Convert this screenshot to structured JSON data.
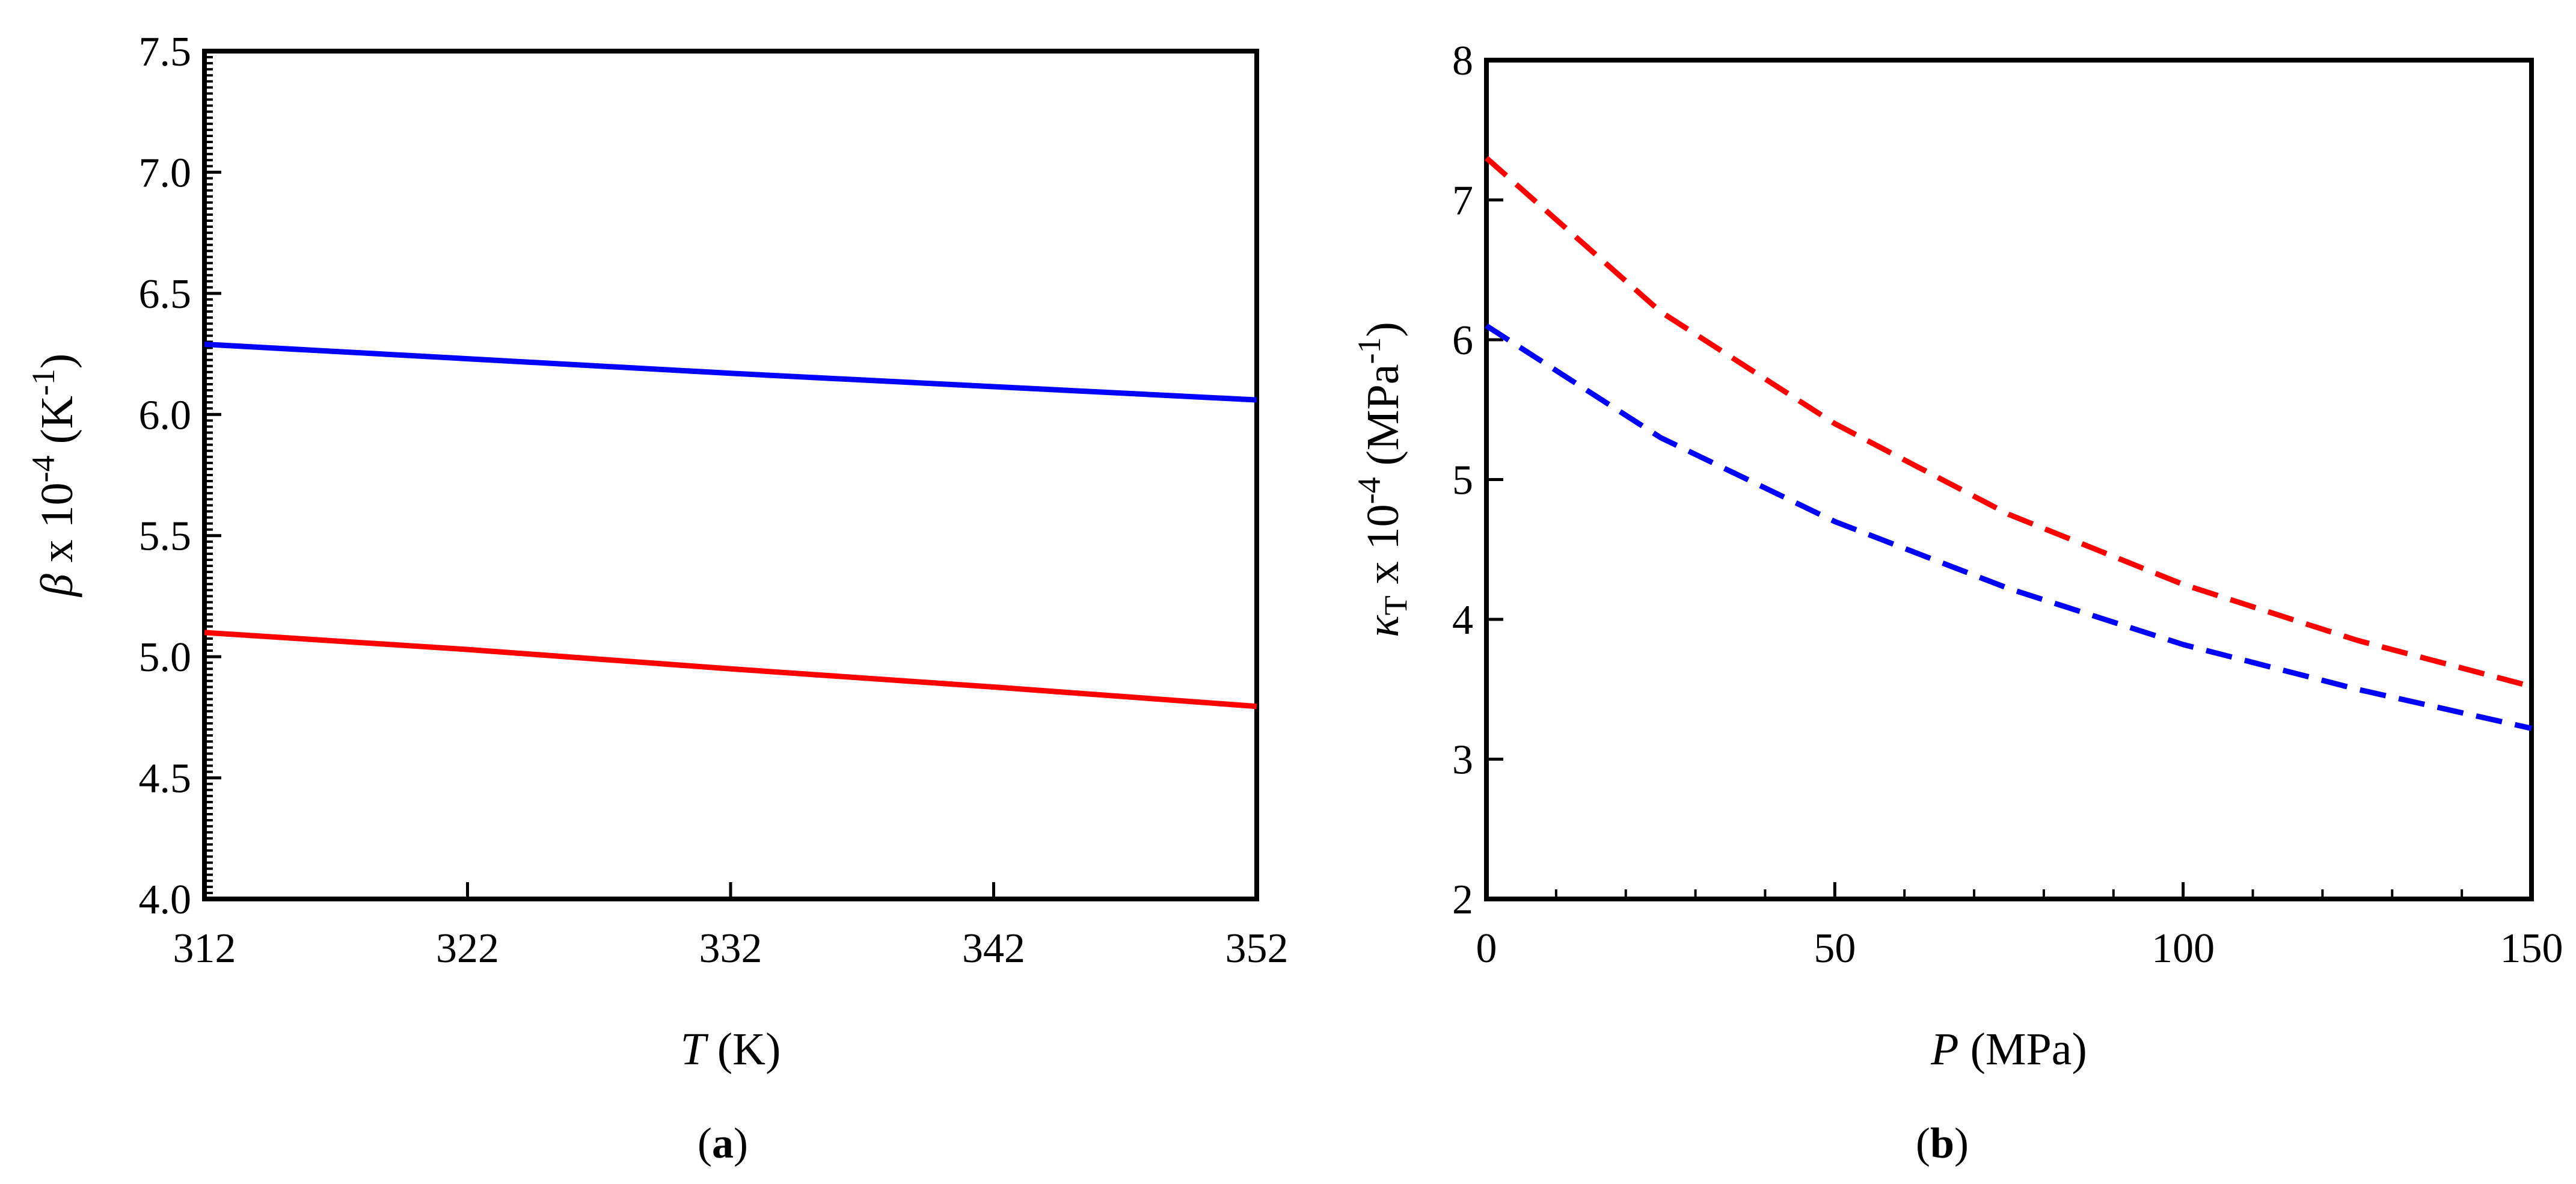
{
  "chart_data": [
    {
      "panel": "a",
      "type": "line",
      "x_name": "T",
      "x_unit": " (K)",
      "y_prefix": "β",
      "y_middle": " x 10",
      "y_sup": "-4",
      "y_unit_open": " (K",
      "y_unit_sup": "-1",
      "y_unit_close": ")",
      "xlim": [
        312,
        352
      ],
      "ylim": [
        4.0,
        7.5
      ],
      "xticks": [
        312,
        322,
        332,
        342,
        352
      ],
      "xtick_labels": [
        "312",
        "322",
        "332",
        "342",
        "352"
      ],
      "yticks": [
        4.0,
        4.5,
        5.0,
        5.5,
        6.0,
        6.5,
        7.0,
        7.5
      ],
      "ytick_labels": [
        "4.0",
        "4.5",
        "5.0",
        "5.5",
        "6.0",
        "6.5",
        "7.0",
        "7.5"
      ],
      "series": [
        {
          "name": "blue",
          "color": "#0000ff",
          "dash": "solid",
          "x": [
            312,
            322,
            332,
            342,
            352
          ],
          "values": [
            6.29,
            6.23,
            6.17,
            6.115,
            6.06
          ]
        },
        {
          "name": "red",
          "color": "#ff0000",
          "dash": "solid",
          "x": [
            312,
            322,
            332,
            342,
            352
          ],
          "values": [
            5.1,
            5.03,
            4.95,
            4.875,
            4.795
          ]
        }
      ]
    },
    {
      "panel": "b",
      "type": "line",
      "x_name": "P",
      "x_unit": " (MPa)",
      "y_prefix": "κ",
      "y_sub": "T",
      "y_middle": " x 10",
      "y_sup": "-4",
      "y_unit_open": " (MPa",
      "y_unit_sup": "-1",
      "y_unit_close": ")",
      "xlim": [
        0,
        150
      ],
      "ylim": [
        2,
        8
      ],
      "xticks": [
        0,
        50,
        100,
        150
      ],
      "xtick_labels": [
        "0",
        "50",
        "100",
        "150"
      ],
      "yticks": [
        2,
        3,
        4,
        5,
        6,
        7,
        8
      ],
      "ytick_labels": [
        "2",
        "3",
        "4",
        "5",
        "6",
        "7",
        "8"
      ],
      "series": [
        {
          "name": "red",
          "color": "#ff0000",
          "dash": "dashed",
          "x": [
            0,
            25,
            50,
            75,
            100,
            125,
            150
          ],
          "values": [
            7.3,
            6.2,
            5.4,
            4.75,
            4.25,
            3.85,
            3.52
          ]
        },
        {
          "name": "blue",
          "color": "#0000ff",
          "dash": "dashed",
          "x": [
            0,
            25,
            50,
            75,
            100,
            125,
            150
          ],
          "values": [
            6.1,
            5.3,
            4.7,
            4.22,
            3.82,
            3.5,
            3.22
          ]
        }
      ]
    }
  ],
  "panel_labels": [
    "a",
    "b"
  ]
}
